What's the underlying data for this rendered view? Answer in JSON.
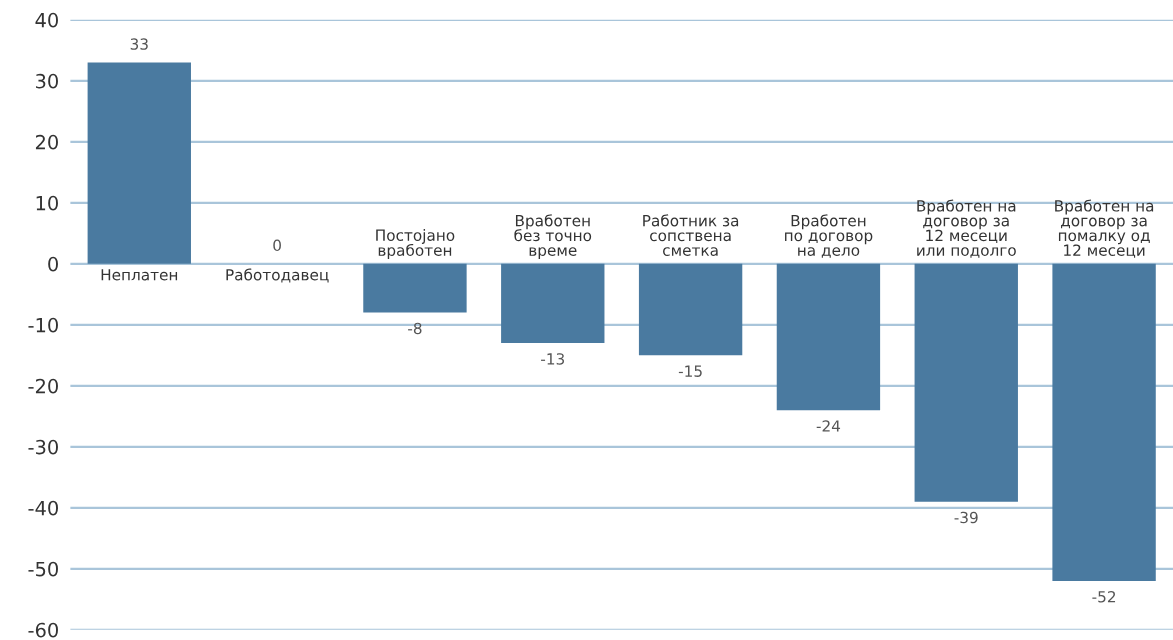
{
  "chart_data": {
    "type": "bar",
    "categories": [
      "Неплатен",
      "Работодавец",
      "Постојано\nвработен",
      "Вработен\nбез точно\nвреме",
      "Работник за\nсопствена\nсметка",
      "Вработен\nпо договор\nна дело",
      "Вработен на\nдоговор за\n12 месеци\nили подолго",
      "Вработен на\nдоговор за\nпомалку од\n12 месеци"
    ],
    "values": [
      33,
      0,
      -8,
      -13,
      -15,
      -24,
      -39,
      -52
    ],
    "color": "#4a7aa0",
    "ylim": [
      -60,
      40
    ],
    "yticks": [
      -60,
      -50,
      -40,
      -30,
      -20,
      -10,
      0,
      10,
      20,
      30,
      40
    ],
    "grid": "y",
    "data_labels": true
  }
}
